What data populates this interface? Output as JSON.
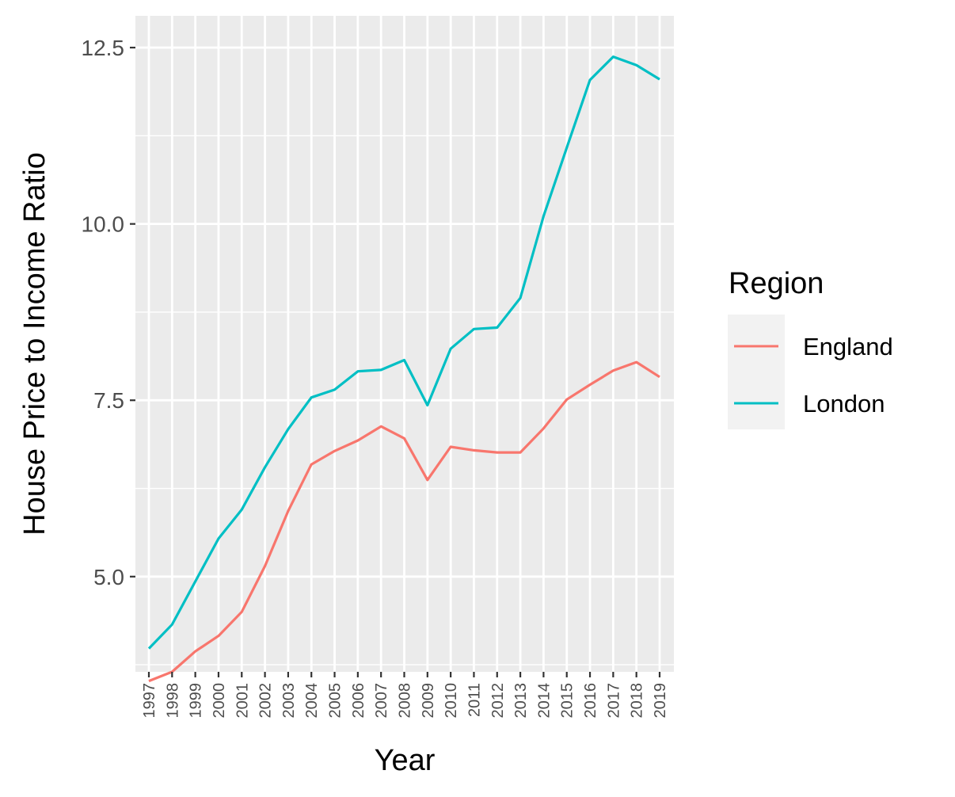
{
  "chart_data": {
    "type": "line",
    "xlabel": "Year",
    "ylabel": "House Price to Income Ratio",
    "x": [
      "1997",
      "1998",
      "1999",
      "2000",
      "2001",
      "2002",
      "2003",
      "2004",
      "2005",
      "2006",
      "2007",
      "2008",
      "2009",
      "2010",
      "2011",
      "2012",
      "2013",
      "2014",
      "2015",
      "2016",
      "2017",
      "2018",
      "2019"
    ],
    "ylim": [
      3.65,
      12.95
    ],
    "yticks": [
      5.0,
      7.5,
      10.0,
      12.5
    ],
    "ytick_labels": [
      "5.0",
      "7.5",
      "10.0",
      "12.5"
    ],
    "grid": true,
    "legend": {
      "title": "Region",
      "position": "right"
    },
    "series": [
      {
        "name": "England",
        "color": "#F8766D",
        "values": [
          3.52,
          3.65,
          3.94,
          4.16,
          4.5,
          5.15,
          5.93,
          6.59,
          6.78,
          6.93,
          7.13,
          6.96,
          6.37,
          6.84,
          6.79,
          6.76,
          6.76,
          7.1,
          7.51,
          7.72,
          7.92,
          8.04,
          7.83
        ]
      },
      {
        "name": "London",
        "color": "#00BFC4",
        "values": [
          3.98,
          4.32,
          4.93,
          5.54,
          5.95,
          6.55,
          7.09,
          7.54,
          7.65,
          7.91,
          7.93,
          8.07,
          7.43,
          8.23,
          8.51,
          8.53,
          8.95,
          10.11,
          11.08,
          12.04,
          12.37,
          12.25,
          12.05
        ]
      }
    ]
  }
}
